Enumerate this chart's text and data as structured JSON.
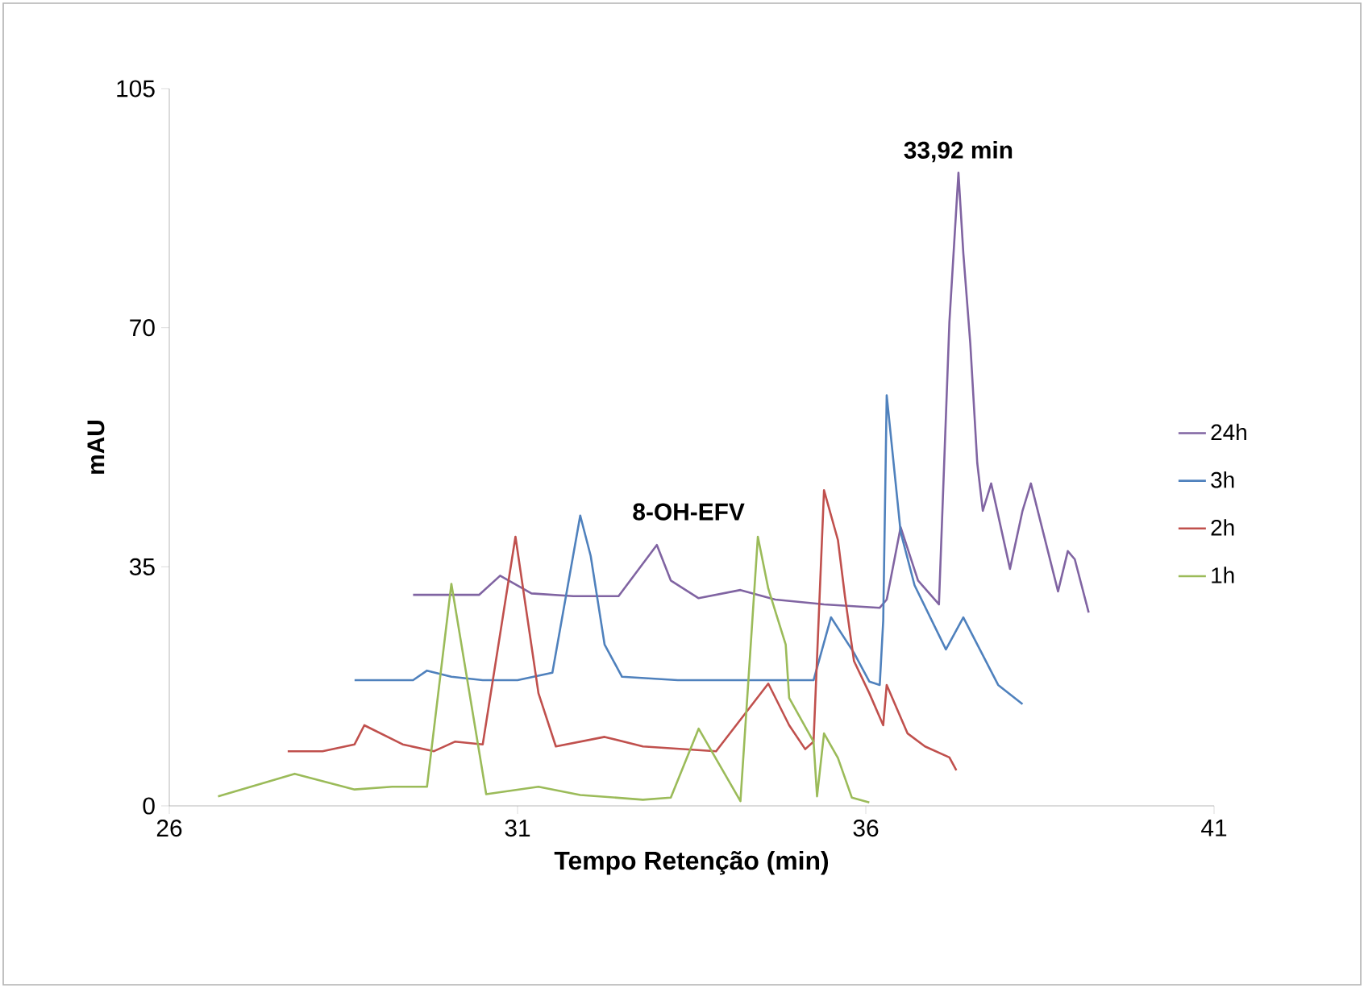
{
  "chart_data": {
    "type": "line",
    "xlabel": "Tempo Retenção (min)",
    "ylabel": "mAU",
    "xlim": [
      26,
      41
    ],
    "xticks": [
      26,
      31,
      36,
      41
    ],
    "ylim": [
      0,
      105
    ],
    "yticks": [
      0,
      35,
      70,
      105
    ],
    "legend": "right",
    "grid": false,
    "marker": "none",
    "line_style": "solid",
    "annotations": [
      {
        "text": "33,92 min",
        "x": 37.33,
        "y": 92.7
      },
      "8-OH-EFV"
    ],
    "series": [
      {
        "name": "24h",
        "color": "#8064a2",
        "x": [
          29.5,
          30.45,
          30.75,
          31.2,
          31.8,
          32.45,
          33.0,
          33.2,
          33.6,
          34.2,
          34.7,
          35.4,
          36.2,
          36.3,
          36.5,
          36.75,
          37.05,
          37.2,
          37.33,
          37.4,
          37.5,
          37.6,
          37.68,
          37.8,
          38.07,
          38.25,
          38.37,
          38.76,
          38.9,
          39.0,
          39.2
        ],
        "values": [
          30.9,
          30.9,
          33.7,
          31.1,
          30.7,
          30.7,
          38.2,
          33.0,
          30.4,
          31.6,
          30.2,
          29.5,
          29.0,
          30.2,
          40.8,
          33.0,
          29.5,
          70.8,
          92.7,
          80.9,
          67.7,
          50.2,
          43.2,
          47.2,
          34.7,
          43.2,
          47.2,
          31.4,
          37.3,
          36.1,
          28.3
        ]
      },
      {
        "name": "3h",
        "color": "#4f81bd",
        "x": [
          28.66,
          29.5,
          29.7,
          30.05,
          30.5,
          31.0,
          31.5,
          31.9,
          32.05,
          32.25,
          32.5,
          33.3,
          34.45,
          35.25,
          35.5,
          35.83,
          36.05,
          36.2,
          36.25,
          36.3,
          36.5,
          36.7,
          37.15,
          37.4,
          37.9,
          38.25
        ],
        "values": [
          18.4,
          18.4,
          19.8,
          18.9,
          18.4,
          18.4,
          19.5,
          42.5,
          36.6,
          23.6,
          18.9,
          18.4,
          18.4,
          18.4,
          27.6,
          22.4,
          18.2,
          17.7,
          27.1,
          60.1,
          40.1,
          32.3,
          22.9,
          27.6,
          17.7,
          14.9
        ]
      },
      {
        "name": "2h",
        "color": "#c0504d",
        "x": [
          27.7,
          28.2,
          28.66,
          28.8,
          29.35,
          29.8,
          30.1,
          30.5,
          30.97,
          31.3,
          31.55,
          32.25,
          32.8,
          33.85,
          34.6,
          34.9,
          35.13,
          35.25,
          35.4,
          35.6,
          35.7,
          35.83,
          36.05,
          36.25,
          36.3,
          36.6,
          36.85,
          37.2,
          37.3
        ],
        "values": [
          8.0,
          8.0,
          9.0,
          11.8,
          9.0,
          8.0,
          9.4,
          9.0,
          39.4,
          16.5,
          8.7,
          10.1,
          8.7,
          8.0,
          17.9,
          11.8,
          8.3,
          9.4,
          46.2,
          38.9,
          30.7,
          21.2,
          16.5,
          11.8,
          17.7,
          10.6,
          8.7,
          7.1,
          5.2
        ]
      },
      {
        "name": "1h",
        "color": "#9bbb59",
        "x": [
          26.7,
          27.8,
          28.66,
          29.2,
          29.7,
          30.05,
          30.55,
          31.3,
          31.9,
          32.8,
          33.2,
          33.6,
          34.2,
          34.45,
          34.6,
          34.85,
          34.9,
          35.25,
          35.3,
          35.4,
          35.6,
          35.8,
          36.05
        ],
        "values": [
          1.4,
          4.7,
          2.4,
          2.8,
          2.8,
          32.5,
          1.7,
          2.8,
          1.6,
          0.9,
          1.2,
          11.3,
          0.7,
          39.4,
          31.8,
          23.6,
          15.8,
          9.4,
          1.4,
          10.6,
          7.0,
          1.2,
          0.5
        ]
      }
    ]
  }
}
